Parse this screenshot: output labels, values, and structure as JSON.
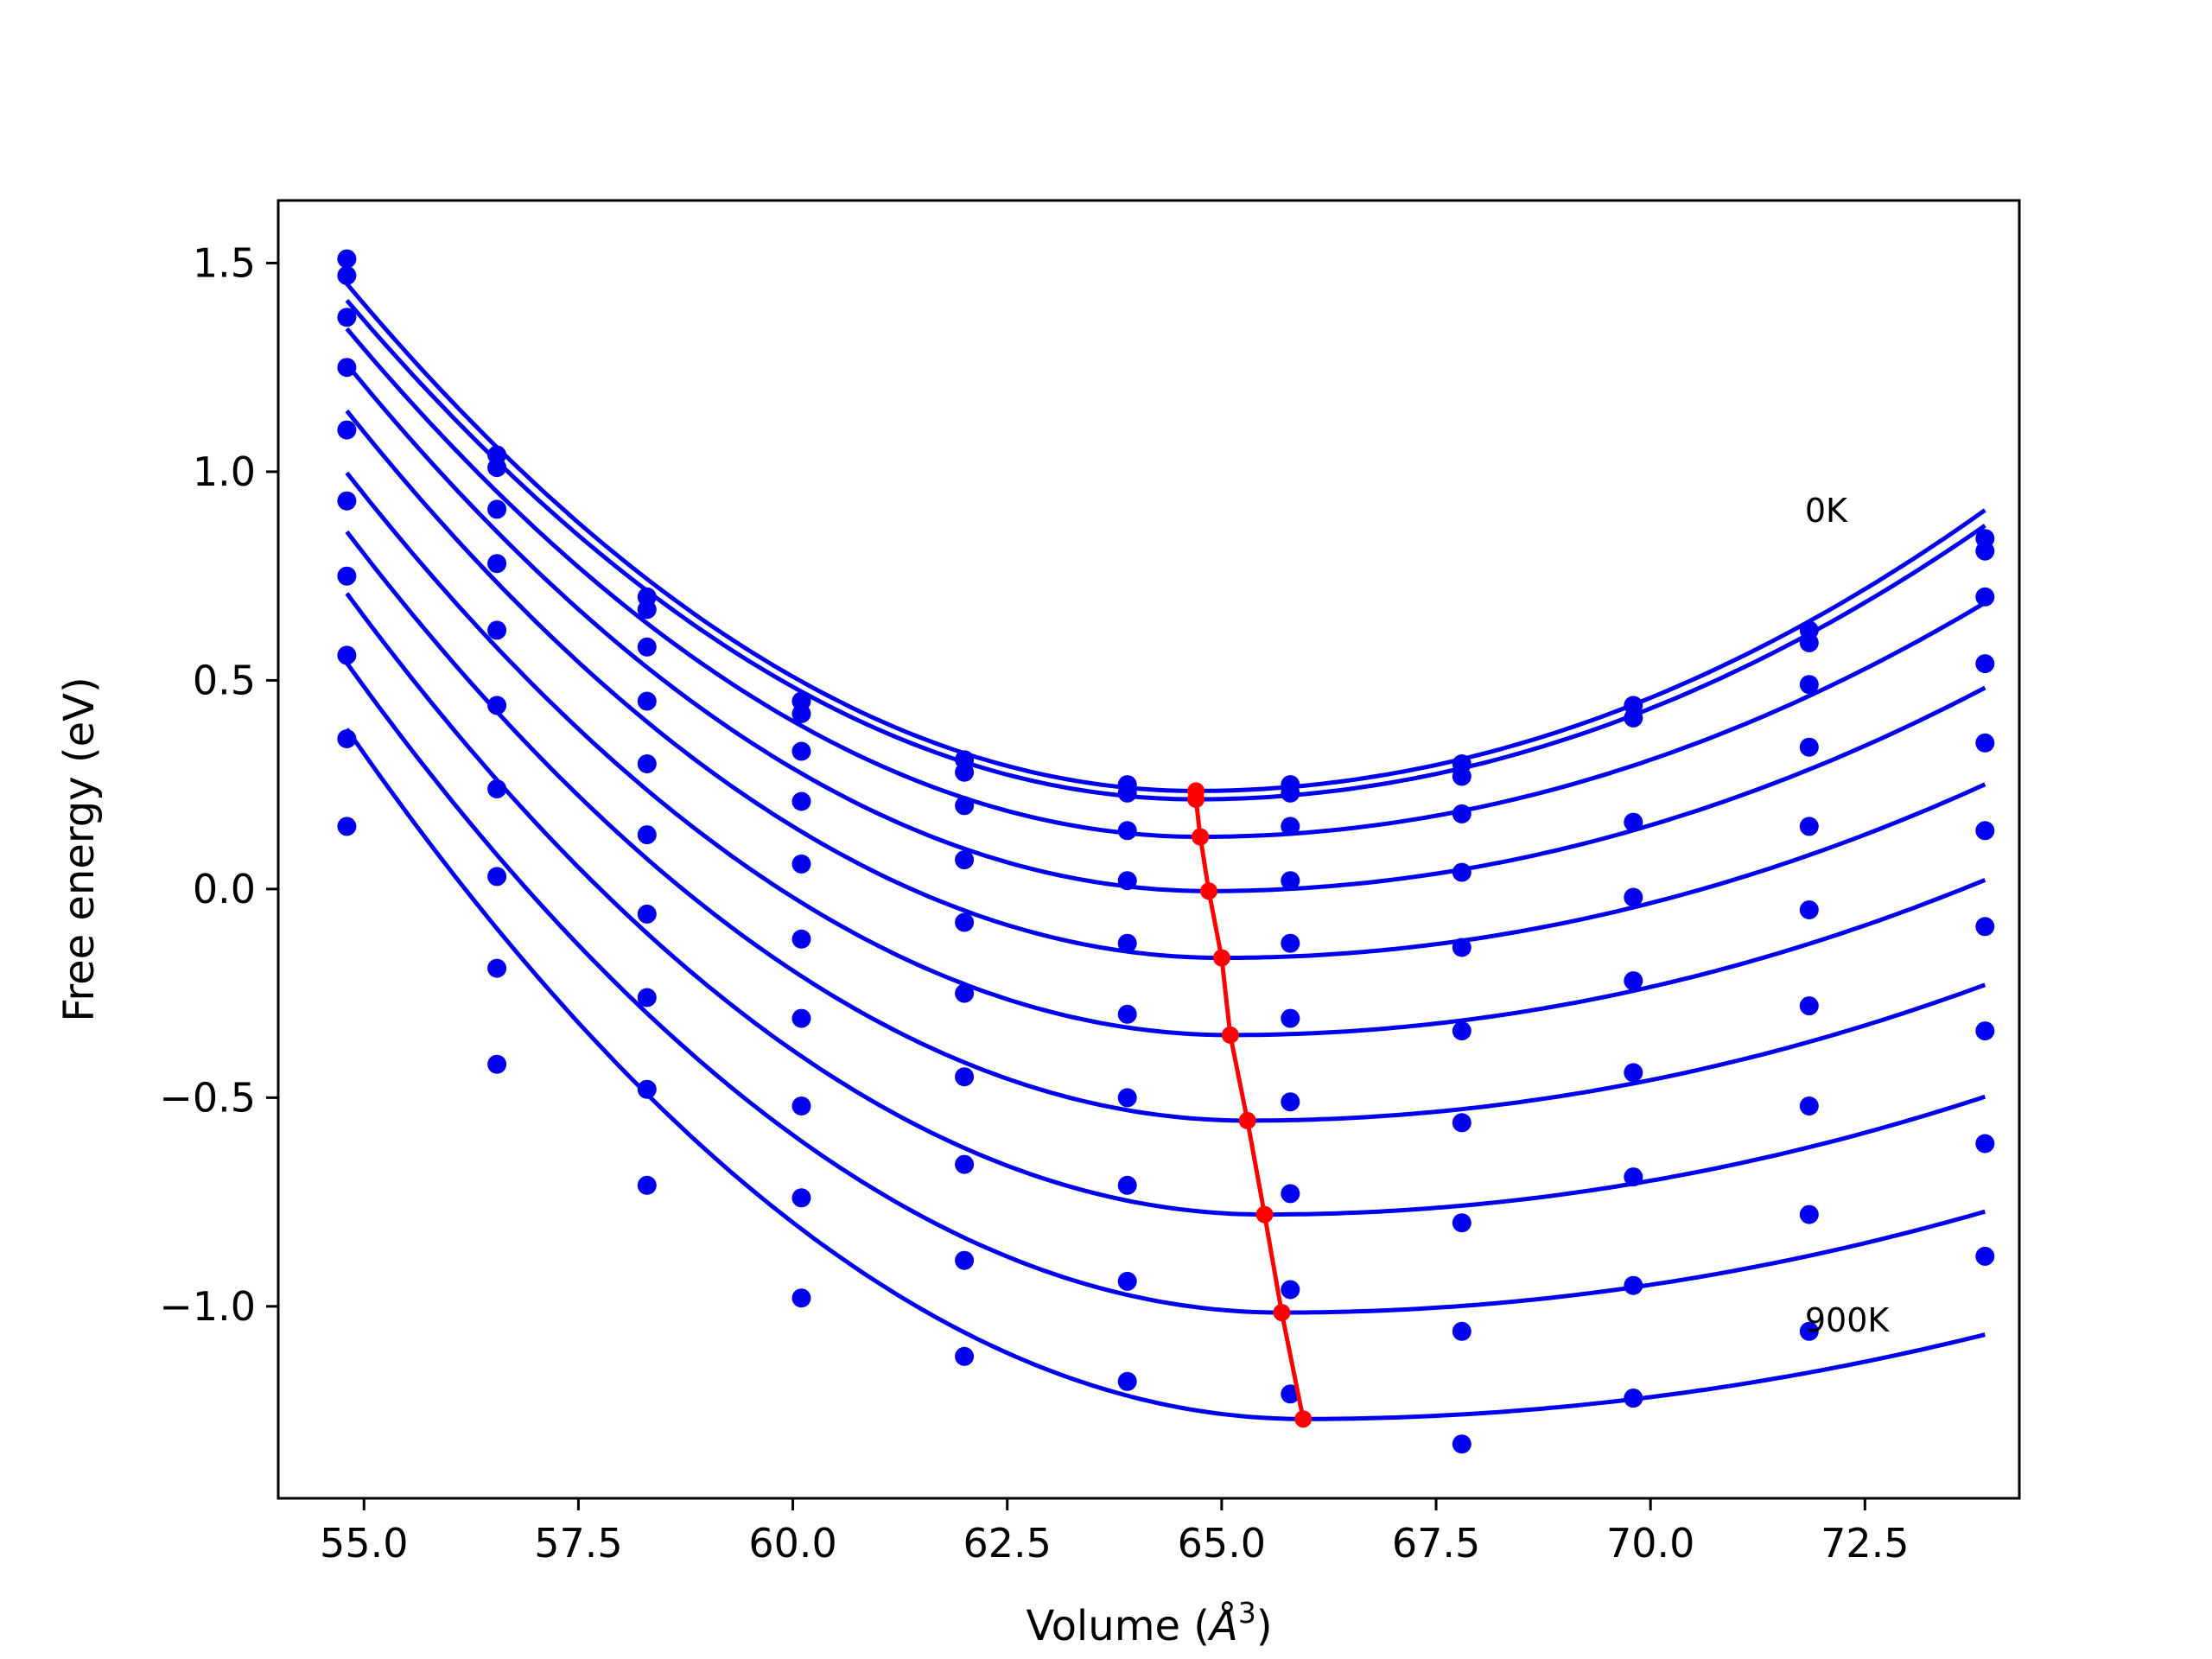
{
  "chart_data": {
    "type": "line",
    "xlabel_text": "Volume (",
    "xlabel_unit": "Å",
    "xlabel_exp": "3",
    "xlabel_close": ")",
    "ylabel": "Free energy (eV)",
    "xlim": [
      54.0,
      74.3
    ],
    "ylim": [
      -1.46,
      1.65
    ],
    "xticks": [
      55.0,
      57.5,
      60.0,
      62.5,
      65.0,
      67.5,
      70.0,
      72.5
    ],
    "xtick_labels": [
      "55.0",
      "57.5",
      "60.0",
      "62.5",
      "65.0",
      "67.5",
      "70.0",
      "72.5"
    ],
    "yticks": [
      1.5,
      1.0,
      0.5,
      0.0,
      -0.5,
      -1.0
    ],
    "ytick_labels": [
      "1.5",
      "1.0",
      "0.5",
      "0.0",
      "−0.5",
      "−1.0"
    ],
    "annotations": [
      {
        "text": "0K",
        "x": 71.8,
        "y": 0.88
      },
      {
        "text": "900K",
        "x": 71.8,
        "y": -1.06
      }
    ],
    "colors": {
      "curves": "#0000ee",
      "minima": "#ff0000",
      "frame": "#000000"
    },
    "grid": false,
    "x": [
      54.8,
      56.55,
      58.3,
      60.1,
      62.0,
      63.9,
      65.8,
      67.8,
      69.8,
      71.85,
      73.9
    ],
    "series": [
      {
        "points": [
          1.51,
          1.04,
          0.7,
          0.45,
          0.31,
          0.25,
          0.25,
          0.3,
          0.44,
          0.62,
          0.84
        ],
        "fit": {
          "vmin": 64.7,
          "emin": 0.235,
          "ka": 0.0124,
          "kb": 0.00795
        }
      },
      {
        "points": [
          1.47,
          1.01,
          0.67,
          0.42,
          0.28,
          0.23,
          0.23,
          0.27,
          0.41,
          0.59,
          0.81
        ],
        "fit": {
          "vmin": 64.7,
          "emin": 0.215,
          "ka": 0.0122,
          "kb": 0.00775
        }
      },
      {
        "points": [
          1.37,
          0.91,
          0.58,
          0.33,
          0.2,
          0.14,
          0.15,
          0.18,
          0.16,
          0.49,
          0.7
        ],
        "fit": {
          "vmin": 64.75,
          "emin": 0.125,
          "ka": 0.0123,
          "kb": 0.0067
        }
      },
      {
        "points": [
          1.25,
          0.78,
          0.45,
          0.21,
          0.07,
          0.02,
          0.02,
          0.04,
          -0.02,
          0.34,
          0.54
        ],
        "fit": {
          "vmin": 64.85,
          "emin": -0.005,
          "ka": 0.0125,
          "kb": 0.00595
        }
      },
      {
        "points": [
          1.1,
          0.62,
          0.3,
          0.06,
          -0.08,
          -0.13,
          -0.13,
          -0.14,
          -0.22,
          0.15,
          0.35
        ],
        "fit": {
          "vmin": 65.0,
          "emin": -0.165,
          "ka": 0.0126,
          "kb": 0.00525
        }
      },
      {
        "points": [
          0.93,
          0.44,
          0.13,
          -0.12,
          -0.25,
          -0.3,
          -0.31,
          -0.34,
          -0.44,
          -0.05,
          0.14
        ],
        "fit": {
          "vmin": 65.1,
          "emin": -0.35,
          "ka": 0.0127,
          "kb": 0.0048
        }
      },
      {
        "points": [
          0.75,
          0.24,
          -0.06,
          -0.31,
          -0.45,
          -0.5,
          -0.51,
          -0.56,
          -0.69,
          -0.28,
          -0.09
        ],
        "fit": {
          "vmin": 65.3,
          "emin": -0.555,
          "ka": 0.0128,
          "kb": 0.0044
        }
      },
      {
        "points": [
          0.56,
          0.03,
          -0.26,
          -0.52,
          -0.66,
          -0.71,
          -0.73,
          -0.8,
          -0.95,
          -0.52,
          -0.34
        ],
        "fit": {
          "vmin": 65.5,
          "emin": -0.78,
          "ka": 0.013,
          "kb": 0.004
        }
      },
      {
        "points": [
          0.36,
          -0.19,
          -0.48,
          -0.74,
          -0.89,
          -0.94,
          -0.96,
          -1.06,
          -1.22,
          -0.78,
          -0.61
        ],
        "fit": {
          "vmin": 65.7,
          "emin": -1.015,
          "ka": 0.0131,
          "kb": 0.0036
        }
      },
      {
        "points": [
          0.15,
          -0.42,
          -0.71,
          -0.98,
          -1.12,
          -1.18,
          -1.21,
          -1.33,
          -1.22,
          -1.06,
          -0.88
        ],
        "fit": {
          "vmin": 65.95,
          "emin": -1.27,
          "ka": 0.0133,
          "kb": 0.0032
        }
      }
    ],
    "minima": {
      "x": [
        64.7,
        64.7,
        64.75,
        64.85,
        65.0,
        65.1,
        65.3,
        65.5,
        65.7,
        65.95
      ],
      "y": [
        0.235,
        0.215,
        0.125,
        -0.005,
        -0.165,
        -0.35,
        -0.555,
        -0.78,
        -1.015,
        -1.27
      ]
    }
  }
}
